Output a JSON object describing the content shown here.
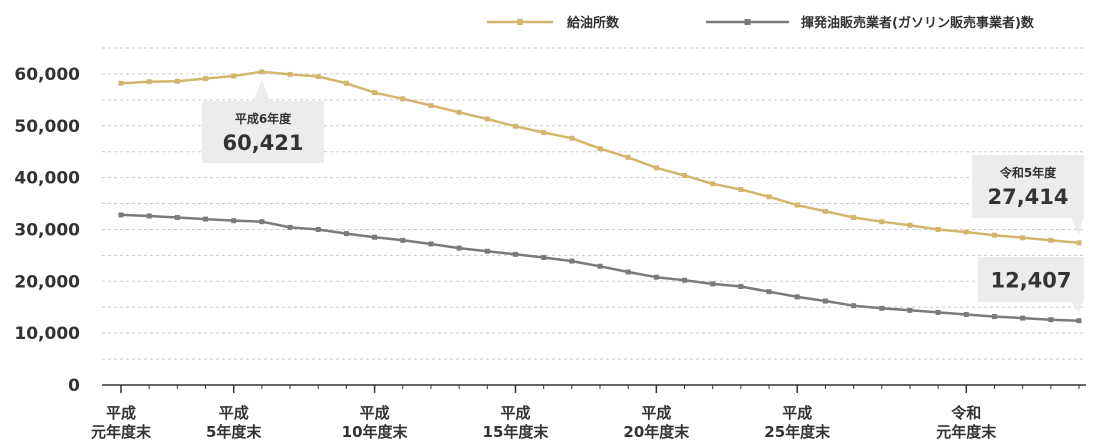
{
  "chart_data": {
    "type": "line",
    "ylim": [
      0,
      65000
    ],
    "y_ticks": [
      "0",
      "10,000",
      "20,000",
      "30,000",
      "40,000",
      "50,000",
      "60,000"
    ],
    "grid": true,
    "legend_position": "top-right",
    "x_tick_labels": [
      {
        "line1": "平成",
        "line2": "元年度末",
        "index": 0
      },
      {
        "line1": "平成",
        "line2": "5年度末",
        "index": 4
      },
      {
        "line1": "平成",
        "line2": "10年度末",
        "index": 9
      },
      {
        "line1": "平成",
        "line2": "15年度末",
        "index": 14
      },
      {
        "line1": "平成",
        "line2": "20年度末",
        "index": 19
      },
      {
        "line1": "平成",
        "line2": "25年度末",
        "index": 24
      },
      {
        "line1": "令和",
        "line2": "元年度末",
        "index": 30
      }
    ],
    "series": [
      {
        "name": "給油所数",
        "color": "#d5b56e",
        "values": [
          58200,
          58500,
          58600,
          59100,
          59600,
          60421,
          59900,
          59500,
          58200,
          56400,
          55200,
          53900,
          52600,
          51300,
          49900,
          48700,
          47600,
          45600,
          43900,
          41900,
          40400,
          38800,
          37700,
          36300,
          34700,
          33500,
          32300,
          31500,
          30800,
          30000,
          29500,
          28900,
          28400,
          27900,
          27414
        ]
      },
      {
        "name": "揮発油販売業者(ガソリン販売事業者)数",
        "color": "#7a7a7a",
        "values": [
          32800,
          32600,
          32300,
          32000,
          31700,
          31500,
          30400,
          30000,
          29200,
          28500,
          27900,
          27200,
          26400,
          25800,
          25200,
          24600,
          23900,
          22900,
          21800,
          20800,
          20200,
          19500,
          19000,
          18000,
          17000,
          16200,
          15300,
          14800,
          14400,
          14000,
          13600,
          13200,
          12900,
          12600,
          12407
        ]
      }
    ],
    "callouts": [
      {
        "label": "平成6年度",
        "value": "60,421",
        "series": 0,
        "index": 5
      },
      {
        "label": "令和5年度",
        "value": "27,414",
        "series": 0,
        "index": 34
      },
      {
        "label": "",
        "value": "12,407",
        "series": 1,
        "index": 34
      }
    ]
  }
}
